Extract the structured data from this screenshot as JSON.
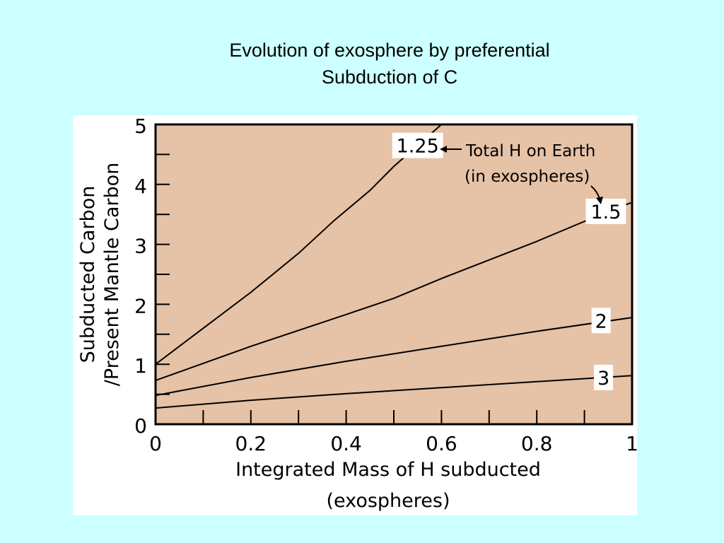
{
  "slide": {
    "title_line1": "Evolution of exosphere by preferential",
    "title_line2": "Subduction of C"
  },
  "colors": {
    "background": "#ccffff",
    "plot_area": "#e6c2a6",
    "line": "#000000"
  },
  "chart_data": {
    "type": "line",
    "xlabel_line1": "Integrated Mass of H subducted",
    "xlabel_line2": "(exospheres)",
    "ylabel_line1": "Subducted Carbon",
    "ylabel_line2": "/Present Mantle Carbon",
    "xlim": [
      0,
      1
    ],
    "ylim": [
      0,
      5
    ],
    "x_ticks": [
      0,
      0.2,
      0.4,
      0.6,
      0.8,
      1
    ],
    "x_tick_labels": [
      "0",
      "0.2",
      "0.4",
      "0.6",
      "0.8",
      "1"
    ],
    "y_ticks": [
      0,
      1,
      2,
      3,
      4,
      5
    ],
    "y_tick_labels": [
      "0",
      "1",
      "2",
      "3",
      "4",
      "5"
    ],
    "grid": false,
    "annotation": {
      "line1": "Total H on Earth",
      "line2": "(in exospheres)"
    },
    "series": [
      {
        "name": "1.25",
        "x": [
          0,
          0.1,
          0.2,
          0.3,
          0.375,
          0.45,
          0.5,
          0.55,
          0.6
        ],
        "y": [
          1.0,
          1.6,
          2.2,
          2.85,
          3.4,
          3.9,
          4.3,
          4.65,
          5.0
        ]
      },
      {
        "name": "1.5",
        "x": [
          0,
          0.2,
          0.4,
          0.5,
          0.6,
          0.8,
          0.95,
          1.0
        ],
        "y": [
          0.73,
          1.3,
          1.83,
          2.1,
          2.43,
          3.05,
          3.55,
          3.7
        ]
      },
      {
        "name": "2",
        "x": [
          0,
          0.2,
          0.4,
          0.6,
          0.8,
          1.0
        ],
        "y": [
          0.48,
          0.78,
          1.05,
          1.3,
          1.55,
          1.78
        ]
      },
      {
        "name": "3",
        "x": [
          0,
          0.2,
          0.4,
          0.6,
          0.8,
          1.0
        ],
        "y": [
          0.27,
          0.4,
          0.51,
          0.61,
          0.71,
          0.81
        ]
      }
    ]
  }
}
